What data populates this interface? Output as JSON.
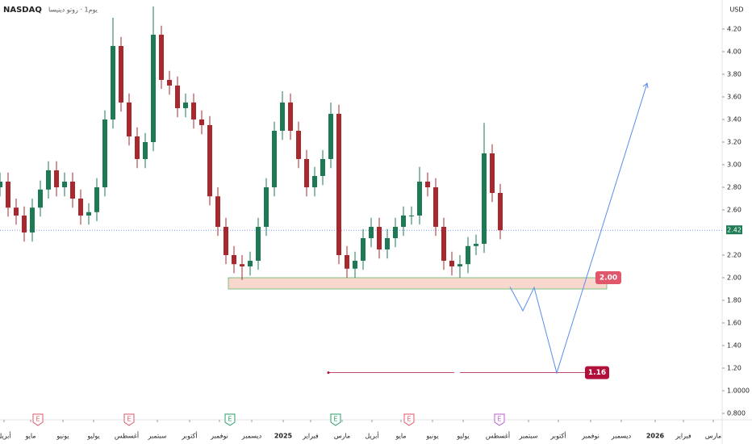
{
  "chart_data": {
    "type": "candlestick",
    "title": "NASDAQ",
    "subtitle": "يوم1 · روتو دينيسا",
    "currency": "USD",
    "x": [
      0,
      1,
      2,
      3,
      4,
      5,
      6,
      7,
      8,
      9,
      10,
      11,
      12,
      13,
      14,
      15,
      16,
      17,
      18,
      19,
      20,
      21,
      22,
      23,
      24,
      25,
      26,
      27,
      28,
      29,
      30,
      31,
      32,
      33,
      34,
      35,
      36,
      37,
      38,
      39,
      40,
      41,
      42,
      43,
      44,
      45,
      46,
      47,
      48,
      49,
      50,
      51,
      52,
      53,
      54,
      55,
      56,
      57,
      58,
      59,
      60,
      61,
      62
    ],
    "open": [
      2.8,
      2.85,
      2.62,
      2.55,
      2.4,
      2.62,
      2.78,
      2.95,
      2.8,
      2.85,
      2.7,
      2.55,
      2.58,
      2.8,
      3.4,
      4.05,
      3.55,
      3.25,
      3.05,
      3.2,
      4.15,
      3.75,
      3.7,
      3.5,
      3.55,
      3.4,
      3.35,
      2.72,
      2.45,
      2.2,
      2.12,
      2.1,
      2.15,
      2.45,
      2.8,
      3.3,
      3.55,
      3.3,
      3.05,
      2.8,
      2.9,
      3.05,
      3.45,
      2.2,
      2.08,
      2.15,
      2.35,
      2.45,
      2.25,
      2.35,
      2.45,
      2.55,
      2.55,
      2.85,
      2.8,
      2.45,
      2.15,
      2.1,
      2.12,
      2.28,
      2.3,
      3.1,
      2.75
    ],
    "high": [
      2.93,
      2.93,
      2.7,
      2.63,
      2.7,
      2.86,
      3.03,
      3.03,
      2.93,
      2.93,
      2.78,
      2.66,
      2.88,
      3.48,
      4.3,
      4.13,
      3.63,
      3.33,
      3.28,
      4.4,
      4.23,
      3.83,
      3.78,
      3.63,
      3.63,
      3.48,
      3.43,
      2.8,
      2.53,
      2.28,
      2.2,
      2.23,
      2.53,
      2.88,
      3.38,
      3.65,
      3.63,
      3.38,
      3.13,
      2.98,
      3.13,
      3.55,
      3.53,
      2.28,
      2.23,
      2.43,
      2.53,
      2.53,
      2.43,
      2.53,
      2.63,
      2.63,
      2.98,
      2.93,
      2.88,
      2.53,
      2.23,
      2.2,
      2.36,
      2.38,
      3.37,
      3.18,
      2.83
    ],
    "low": [
      2.72,
      2.54,
      2.47,
      2.32,
      2.32,
      2.54,
      2.7,
      2.72,
      2.72,
      2.62,
      2.47,
      2.47,
      2.5,
      2.72,
      3.32,
      3.47,
      3.17,
      2.97,
      2.97,
      3.12,
      3.67,
      3.62,
      3.42,
      3.42,
      3.32,
      3.27,
      2.64,
      2.37,
      2.12,
      2.04,
      1.98,
      2.02,
      2.07,
      2.37,
      2.72,
      3.22,
      3.22,
      2.97,
      2.72,
      2.72,
      2.82,
      2.97,
      2.12,
      2.0,
      2.0,
      2.07,
      2.27,
      2.17,
      2.17,
      2.27,
      2.37,
      2.47,
      2.47,
      2.72,
      2.37,
      2.07,
      2.02,
      2.0,
      2.04,
      2.2,
      2.22,
      2.67,
      2.34
    ],
    "close": [
      2.85,
      2.62,
      2.55,
      2.4,
      2.62,
      2.78,
      2.95,
      2.8,
      2.85,
      2.7,
      2.55,
      2.58,
      2.8,
      3.4,
      4.05,
      3.55,
      3.25,
      3.05,
      3.2,
      4.15,
      3.75,
      3.7,
      3.5,
      3.55,
      3.4,
      3.35,
      2.72,
      2.45,
      2.2,
      2.12,
      2.1,
      2.15,
      2.45,
      2.8,
      3.3,
      3.55,
      3.3,
      3.05,
      2.8,
      2.9,
      3.05,
      3.45,
      2.2,
      2.08,
      2.15,
      2.35,
      2.45,
      2.25,
      2.35,
      2.45,
      2.55,
      2.55,
      2.85,
      2.8,
      2.45,
      2.15,
      2.1,
      2.12,
      2.28,
      2.3,
      3.1,
      2.75,
      2.42
    ],
    "up_color": "#1e7a55",
    "down_color": "#a8282e",
    "xlim": [
      0,
      89.5
    ],
    "xticks": [
      {
        "value": 0.5,
        "label": "أبريل"
      },
      {
        "value": 3.8,
        "label": "مايو"
      },
      {
        "value": 7.8,
        "label": "يونيو"
      },
      {
        "value": 11.6,
        "label": "يوليو"
      },
      {
        "value": 15.7,
        "label": "أغسطس"
      },
      {
        "value": 19.5,
        "label": "سبتمبر"
      },
      {
        "value": 23.5,
        "label": "أكتوبر"
      },
      {
        "value": 27.2,
        "label": "نوفمبر"
      },
      {
        "value": 31.2,
        "label": "ديسمبر"
      },
      {
        "value": 35.1,
        "label": "2025"
      },
      {
        "value": 38.5,
        "label": "فبراير"
      },
      {
        "value": 42.4,
        "label": "مارس"
      },
      {
        "value": 46.1,
        "label": "أبريل"
      },
      {
        "value": 49.7,
        "label": "مايو"
      },
      {
        "value": 53.6,
        "label": "يونيو"
      },
      {
        "value": 57.4,
        "label": "يوليو"
      },
      {
        "value": 61.7,
        "label": "أغسطس"
      },
      {
        "value": 65.5,
        "label": "سبتمبر"
      },
      {
        "value": 69.2,
        "label": "أكتوبر"
      },
      {
        "value": 73.2,
        "label": "نوفمبر"
      },
      {
        "value": 77,
        "label": "ديسمبر"
      },
      {
        "value": 81.2,
        "label": "2026"
      },
      {
        "value": 84.7,
        "label": "فبراير"
      },
      {
        "value": 88.4,
        "label": "مارس"
      }
    ],
    "ylim": [
      0.743,
      4.457
    ],
    "yticks": [
      {
        "value": 4.2,
        "label": "4.20"
      },
      {
        "value": 4.0,
        "label": "4.00"
      },
      {
        "value": 3.8,
        "label": "3.80"
      },
      {
        "value": 3.6,
        "label": "3.60"
      },
      {
        "value": 3.4,
        "label": "3.40"
      },
      {
        "value": 3.2,
        "label": "3.20"
      },
      {
        "value": 3.0,
        "label": "3.00"
      },
      {
        "value": 2.8,
        "label": "2.80"
      },
      {
        "value": 2.6,
        "label": "2.60"
      },
      {
        "value": 2.2,
        "label": "2.20"
      },
      {
        "value": 2.0,
        "label": "2.00"
      },
      {
        "value": 1.8,
        "label": "1.80"
      },
      {
        "value": 1.6,
        "label": "1.60"
      },
      {
        "value": 1.4,
        "label": "1.40"
      },
      {
        "value": 1.2,
        "label": "1.20"
      },
      {
        "value": 1.0,
        "label": "1.0000"
      },
      {
        "value": 0.8,
        "label": "0.800"
      }
    ],
    "last_price": {
      "value": 2.42,
      "label": "2.42",
      "color": "#2962ff"
    },
    "zone": {
      "x": [
        28.3,
        75.2
      ],
      "y": [
        2.0,
        1.9
      ],
      "label": "2.00",
      "color": "#f8d7cf"
    },
    "target": {
      "value": 1.16,
      "label": "1.16",
      "x": [
        40.7,
        72.5
      ],
      "color": "#b0103a"
    },
    "projection": {
      "x": [
        63.2,
        64.8,
        66.2,
        69.0,
        80.2
      ],
      "y": [
        1.92,
        1.707,
        1.914,
        1.157,
        3.72
      ],
      "color": "#5b8def"
    },
    "earnings": {
      "label": "E",
      "x": [
        4.7,
        16.0,
        28.5,
        41.6,
        50.7,
        61.9
      ],
      "colors": [
        "#e0566a",
        "#e0566a",
        "#2a9d6a",
        "#2a9d6a",
        "#e0566a",
        "#b85cd6"
      ]
    }
  }
}
